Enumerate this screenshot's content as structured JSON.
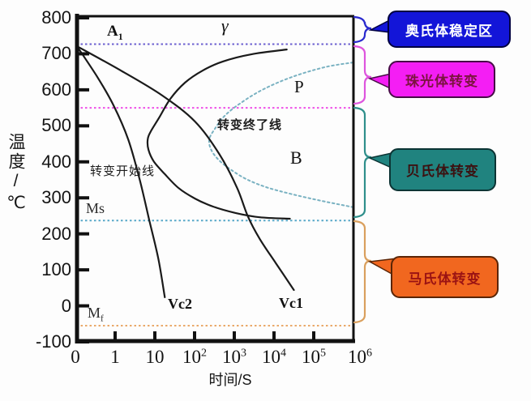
{
  "chart_data": {
    "type": "line",
    "xlabel": "时间/S",
    "ylabel": "温度/℃",
    "x_axis": {
      "scale": "log",
      "unit": "s",
      "ticks": [
        {
          "base": "0"
        },
        {
          "base": "1"
        },
        {
          "base": "10"
        },
        {
          "base": "10",
          "sup": "2"
        },
        {
          "base": "10",
          "sup": "3"
        },
        {
          "base": "10",
          "sup": "4"
        },
        {
          "base": "10",
          "sup": "5"
        },
        {
          "base": "10",
          "sup": "6"
        }
      ],
      "note": "axis position u: 0 = origin '0', then one unit per decade (u=1 is 1 s, u=7 is 1e6 s)"
    },
    "y_axis": {
      "unit": "℃",
      "range": [
        -100,
        800
      ],
      "ticks": [
        800,
        700,
        600,
        500,
        400,
        300,
        200,
        100,
        0,
        -100
      ]
    },
    "grid": false,
    "reference_lines": [
      {
        "id": "a1",
        "label": "A1",
        "temp_C": 727,
        "style": "dotted",
        "color": "#6a5fd0"
      },
      {
        "id": "p_b_boundary",
        "label": "",
        "temp_C": 550,
        "style": "dotted",
        "color": "#ee50e8"
      },
      {
        "id": "ms",
        "label": "Ms",
        "temp_C": 237,
        "style": "dotted",
        "color": "#58a8c8"
      },
      {
        "id": "mf",
        "label": "Mf",
        "temp_C": -55,
        "style": "dotted",
        "color": "#eaa96a"
      }
    ],
    "series": [
      {
        "id": "start_line",
        "name": "转变开始线",
        "style": "solid",
        "color": "#1a1a1a",
        "points_u_T": [
          [
            5.32,
            712
          ],
          [
            4.44,
            699
          ],
          [
            3.72,
            679
          ],
          [
            3.21,
            654
          ],
          [
            2.76,
            620
          ],
          [
            2.39,
            575
          ],
          [
            2.11,
            523
          ],
          [
            1.9,
            485
          ],
          [
            1.82,
            462
          ],
          [
            1.84,
            433
          ],
          [
            1.98,
            400
          ],
          [
            2.25,
            366
          ],
          [
            2.6,
            327
          ],
          [
            3.01,
            298
          ],
          [
            3.46,
            276
          ],
          [
            4.03,
            258
          ],
          [
            4.64,
            246
          ],
          [
            5.4,
            242
          ]
        ]
      },
      {
        "id": "end_line",
        "name": "转变终了线",
        "style": "dotted",
        "color": "#7ab2c2",
        "points_u_T": [
          [
            6.99,
            676
          ],
          [
            6.28,
            663
          ],
          [
            5.46,
            636
          ],
          [
            4.74,
            602
          ],
          [
            4.17,
            564
          ],
          [
            3.76,
            528
          ],
          [
            3.5,
            490
          ],
          [
            3.37,
            462
          ],
          [
            3.42,
            433
          ],
          [
            3.62,
            404
          ],
          [
            3.93,
            377
          ],
          [
            4.34,
            350
          ],
          [
            4.85,
            328
          ],
          [
            5.46,
            310
          ],
          [
            6.18,
            292
          ],
          [
            6.99,
            274
          ]
        ]
      },
      {
        "id": "vc1",
        "name": "Vc1",
        "style": "solid",
        "color": "#1a1a1a",
        "points_u_T": [
          [
            0.04,
            721
          ],
          [
            1.17,
            652
          ],
          [
            2.19,
            584
          ],
          [
            3.01,
            512
          ],
          [
            3.62,
            422
          ],
          [
            4.07,
            328
          ],
          [
            4.34,
            249
          ],
          [
            4.64,
            186
          ],
          [
            5.05,
            118
          ],
          [
            5.5,
            44
          ]
        ]
      },
      {
        "id": "vc2",
        "name": "Vc2",
        "style": "solid",
        "color": "#1a1a1a",
        "points_u_T": [
          [
            0.04,
            721
          ],
          [
            0.55,
            636
          ],
          [
            0.96,
            557
          ],
          [
            1.33,
            462
          ],
          [
            1.62,
            350
          ],
          [
            1.86,
            238
          ],
          [
            2.09,
            130
          ],
          [
            2.25,
            24
          ]
        ]
      }
    ],
    "region_labels": [
      "γ",
      "A1",
      "P",
      "B",
      "Ms",
      "Mf",
      "Vc2",
      "Vc1",
      "转变开始线",
      "转变终了线"
    ]
  },
  "labels": {
    "gamma": "γ",
    "a1": {
      "base": "A",
      "sub": "1"
    },
    "p": "P",
    "b": "B",
    "ms": "Ms",
    "mf": {
      "base": "M",
      "sub": "f"
    },
    "vc2": "Vc2",
    "vc1": "Vc1",
    "start_line": "转变开始线",
    "end_line": "转变终了线"
  },
  "callouts": [
    {
      "id": "austenite-stable",
      "label": "奥氏体稳定区",
      "fill": "#1315d8",
      "text_color": "#ffffff",
      "border": "#000040",
      "brace_color": "#2a2ace",
      "temp_range_C": [
        727,
        800
      ]
    },
    {
      "id": "pearlite",
      "label": "珠光体转变",
      "fill": "#f41ef4",
      "text_color": "#7c1340",
      "border": "#470c47",
      "brace_color": "#de55de",
      "temp_range_C": [
        550,
        727
      ]
    },
    {
      "id": "bainite",
      "label": "贝氏体转变",
      "fill": "#20837f",
      "text_color": "#3c1111",
      "border": "#0c3434",
      "brace_color": "#2f8f8b",
      "temp_range_C": [
        237,
        550
      ]
    },
    {
      "id": "martensite",
      "label": "马氏体转变",
      "fill": "#f1671f",
      "text_color": "#9b1313",
      "border": "#5a2506",
      "brace_color": "#daa05e",
      "temp_range_C": [
        -55,
        237
      ]
    }
  ]
}
